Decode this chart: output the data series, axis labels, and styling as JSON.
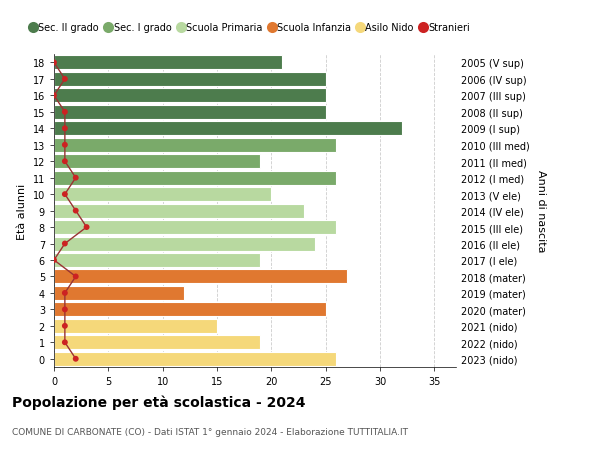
{
  "ages": [
    18,
    17,
    16,
    15,
    14,
    13,
    12,
    11,
    10,
    9,
    8,
    7,
    6,
    5,
    4,
    3,
    2,
    1,
    0
  ],
  "right_labels": [
    "2005 (V sup)",
    "2006 (IV sup)",
    "2007 (III sup)",
    "2008 (II sup)",
    "2009 (I sup)",
    "2010 (III med)",
    "2011 (II med)",
    "2012 (I med)",
    "2013 (V ele)",
    "2014 (IV ele)",
    "2015 (III ele)",
    "2016 (II ele)",
    "2017 (I ele)",
    "2018 (mater)",
    "2019 (mater)",
    "2020 (mater)",
    "2021 (nido)",
    "2022 (nido)",
    "2023 (nido)"
  ],
  "bar_values": [
    21,
    25,
    25,
    25,
    32,
    26,
    19,
    26,
    20,
    23,
    26,
    24,
    19,
    27,
    12,
    25,
    15,
    19,
    26
  ],
  "bar_colors": [
    "#4d7c4d",
    "#4d7c4d",
    "#4d7c4d",
    "#4d7c4d",
    "#4d7c4d",
    "#7aaa6a",
    "#7aaa6a",
    "#7aaa6a",
    "#b8d9a0",
    "#b8d9a0",
    "#b8d9a0",
    "#b8d9a0",
    "#b8d9a0",
    "#e07830",
    "#e07830",
    "#e07830",
    "#f5d87a",
    "#f5d87a",
    "#f5d87a"
  ],
  "stranieri_values": [
    0,
    1,
    0,
    1,
    1,
    1,
    1,
    2,
    1,
    2,
    3,
    1,
    0,
    2,
    1,
    1,
    1,
    1,
    2
  ],
  "legend_items": [
    {
      "label": "Sec. II grado",
      "color": "#4d7c4d",
      "type": "patch"
    },
    {
      "label": "Sec. I grado",
      "color": "#7aaa6a",
      "type": "patch"
    },
    {
      "label": "Scuola Primaria",
      "color": "#b8d9a0",
      "type": "patch"
    },
    {
      "label": "Scuola Infanzia",
      "color": "#e07830",
      "type": "patch"
    },
    {
      "label": "Asilo Nido",
      "color": "#f5d87a",
      "type": "patch"
    },
    {
      "label": "Stranieri",
      "color": "#cc2222",
      "type": "dot"
    }
  ],
  "ylabel_left": "Età alunni",
  "ylabel_right": "Anni di nascita",
  "title": "Popolazione per età scolastica - 2024",
  "subtitle": "COMUNE DI CARBONATE (CO) - Dati ISTAT 1° gennaio 2024 - Elaborazione TUTTITALIA.IT",
  "xlim": [
    0,
    37
  ],
  "background_color": "#ffffff",
  "grid_color": "#cccccc"
}
